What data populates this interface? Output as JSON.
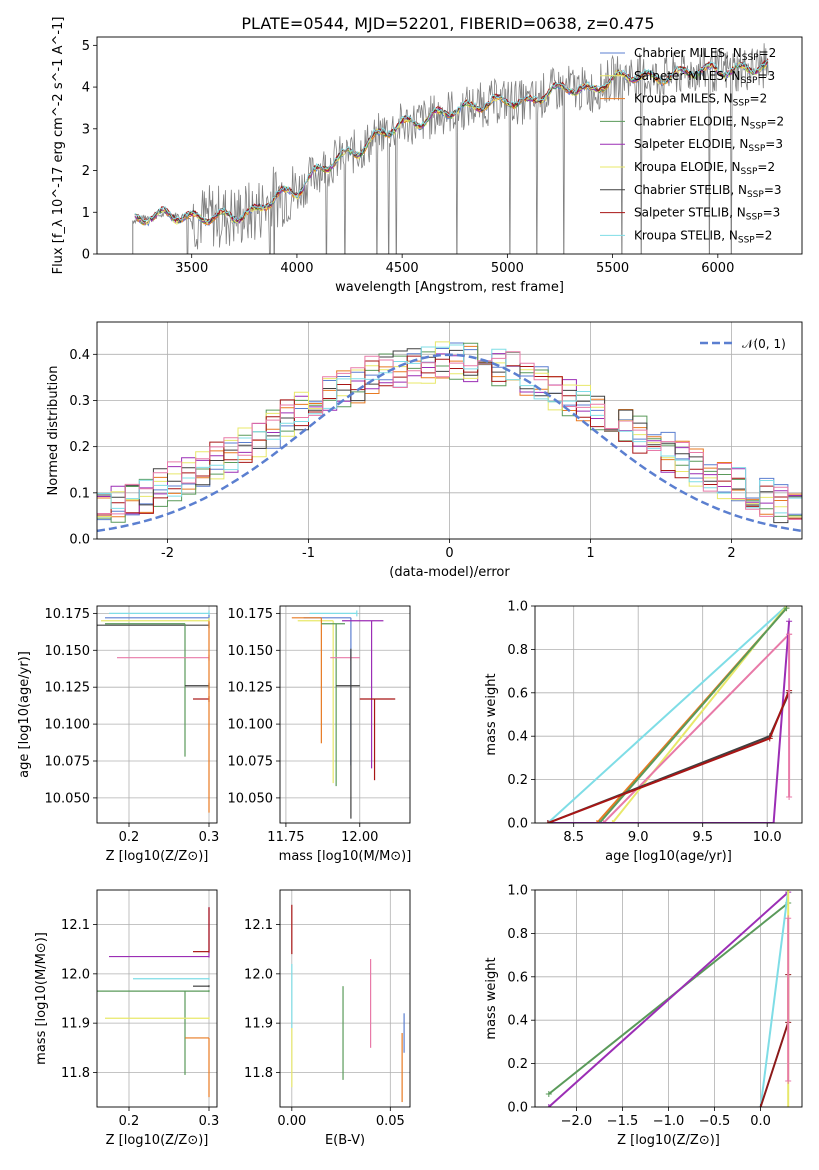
{
  "title": "PLATE=0544, MJD=52201, FIBERID=0638, z=0.475",
  "colors": {
    "blue": "#5b7fd0",
    "orange": "#e87a22",
    "green": "#5a9a5a",
    "purple": "#9b2eb5",
    "yellow": "#e8e86a",
    "darkgray": "#404040",
    "red": "#a81515",
    "cyan": "#7fdde6",
    "pink": "#e87aa8",
    "gray": "#808080",
    "darkred": "#8b1a1a",
    "sage": "#5a8a5a"
  },
  "chart_data": [
    {
      "id": "spectrum",
      "type": "line",
      "xlabel": "wavelength [Angstrom, rest frame]",
      "ylabel": "Flux [f_λ 10^-17 erg cm^-2 s^-1 A^-1]",
      "xlim": [
        3050,
        6400
      ],
      "ylim": [
        0,
        5.2
      ],
      "xticks": [
        3500,
        4000,
        4500,
        5000,
        5500,
        6000
      ],
      "yticks": [
        0,
        1,
        2,
        3,
        4,
        5
      ],
      "legend_position": "top-right",
      "series": [
        {
          "name": "Chabrier MILES, N_SSP=2",
          "color": "#5b7fd0"
        },
        {
          "name": "Salpeter MILES, N_SSP=3",
          "color": "#e8e86a"
        },
        {
          "name": "Kroupa MILES, N_SSP=2",
          "color": "#e87a22"
        },
        {
          "name": "Chabrier ELODIE, N_SSP=2",
          "color": "#5a9a5a"
        },
        {
          "name": "Salpeter ELODIE, N_SSP=3",
          "color": "#9b2eb5"
        },
        {
          "name": "Kroupa ELODIE, N_SSP=2",
          "color": "#e8e86a"
        },
        {
          "name": "Chabrier STELIB, N_SSP=3",
          "color": "#404040"
        },
        {
          "name": "Salpeter STELIB, N_SSP=3",
          "color": "#a81515"
        },
        {
          "name": "Kroupa STELIB, N_SSP=2",
          "color": "#7fdde6"
        }
      ],
      "continuum": {
        "x": [
          3200,
          3220,
          3300,
          3400,
          3500,
          3600,
          3700,
          3800,
          3900,
          4000,
          4100,
          4200,
          4300,
          4400,
          4500,
          4600,
          4700,
          4800,
          4900,
          5000,
          5100,
          5200,
          5300,
          5400,
          5500,
          5600,
          5700,
          5800,
          5900,
          6000,
          6100,
          6200
        ],
        "y": [
          0,
          0.8,
          0.9,
          0.95,
          0.85,
          0.9,
          0.9,
          1.0,
          1.4,
          1.5,
          2.0,
          2.3,
          2.5,
          2.9,
          3.1,
          3.2,
          3.4,
          3.5,
          3.6,
          3.7,
          3.6,
          3.9,
          4.0,
          3.9,
          4.2,
          4.3,
          4.2,
          4.3,
          4.4,
          4.4,
          4.4,
          4.5
        ]
      }
    },
    {
      "id": "residuals",
      "type": "step",
      "xlabel": "(data-model)/error",
      "ylabel": "Normed distribution",
      "xlim": [
        -2.5,
        2.5
      ],
      "ylim": [
        0,
        0.47
      ],
      "xticks": [
        -2,
        -1,
        0,
        1,
        2
      ],
      "yticks": [
        0.0,
        0.1,
        0.2,
        0.3,
        0.4
      ],
      "legend_position": "top-right",
      "legend": [
        "N(0,1)"
      ],
      "normal_curve": {
        "mean": 0,
        "sigma": 1,
        "color": "#5b7fd0"
      }
    },
    {
      "id": "age-vs-Z",
      "type": "errorbar",
      "xlabel": "Z [log10(Z/Z⊙)]",
      "ylabel": "age [log10(age/yr)]",
      "xlim": [
        0.16,
        0.31
      ],
      "ylim": [
        10.033,
        10.18
      ],
      "xticks": [
        0.2,
        0.3
      ],
      "yticks": [
        10.05,
        10.075,
        10.1,
        10.125,
        10.15,
        10.175
      ],
      "points": [
        {
          "x": 0.3,
          "y": 10.175,
          "xerr": [
            0.125,
            0
          ],
          "yerr": [
            0.002,
            0.002
          ],
          "color": "#7fdde6"
        },
        {
          "x": 0.3,
          "y": 10.172,
          "xerr": [
            0.13,
            0
          ],
          "yerr": [
            0.002,
            0.002
          ],
          "color": "#5b7fd0"
        },
        {
          "x": 0.3,
          "y": 10.17,
          "xerr": [
            0.135,
            0
          ],
          "yerr": [
            0.002,
            0.002
          ],
          "color": "#e8e86a"
        },
        {
          "x": 0.3,
          "y": 10.167,
          "xerr": [
            0.14,
            0
          ],
          "yerr": [
            0.002,
            0.002
          ],
          "color": "#404040"
        },
        {
          "x": 0.27,
          "y": 10.168,
          "xerr": [
            0.1,
            0
          ],
          "yerr": [
            0.09,
            0
          ],
          "color": "#5a9a5a"
        },
        {
          "x": 0.3,
          "y": 10.145,
          "xerr": [
            0.115,
            0
          ],
          "yerr": [
            0.002,
            0.002
          ],
          "color": "#e87aa8"
        },
        {
          "x": 0.3,
          "y": 10.126,
          "xerr": [
            0.03,
            0
          ],
          "yerr": [
            0.002,
            0.002
          ],
          "color": "#404040"
        },
        {
          "x": 0.3,
          "y": 10.117,
          "xerr": [
            0.02,
            0
          ],
          "yerr": [
            0.002,
            0.002
          ],
          "color": "#a81515"
        },
        {
          "x": 0.3,
          "y": 10.1,
          "xerr": [
            0,
            0
          ],
          "yerr": [
            0.06,
            0.07
          ],
          "color": "#e87a22"
        }
      ]
    },
    {
      "id": "age-vs-mass",
      "type": "errorbar",
      "xlabel": "mass [log10(M/M⊙)]",
      "xlim": [
        11.73,
        12.17
      ],
      "ylim": [
        10.033,
        10.18
      ],
      "xticks": [
        11.75,
        12.0
      ],
      "yticks": [
        10.05,
        10.075,
        10.1,
        10.125,
        10.15,
        10.175
      ],
      "points": [
        {
          "x": 11.99,
          "y": 10.175,
          "xerr": [
            0.16,
            0.0
          ],
          "yerr": [
            0.002,
            0.002
          ],
          "color": "#7fdde6"
        },
        {
          "x": 11.97,
          "y": 10.172,
          "xerr": [
            0.16,
            0.0
          ],
          "yerr": [
            0.1,
            0.0
          ],
          "color": "#5b7fd0"
        },
        {
          "x": 11.91,
          "y": 10.17,
          "xerr": [
            0.12,
            0.0
          ],
          "yerr": [
            0.11,
            0.0
          ],
          "color": "#e8e86a"
        },
        {
          "x": 12.04,
          "y": 10.17,
          "xerr": [
            0.1,
            0.04
          ],
          "yerr": [
            0.1,
            0.0
          ],
          "color": "#9b2eb5"
        },
        {
          "x": 11.87,
          "y": 10.172,
          "xerr": [
            0.1,
            0.0
          ],
          "yerr": [
            0.085,
            0.0
          ],
          "color": "#e87a22"
        },
        {
          "x": 11.92,
          "y": 10.168,
          "xerr": [
            0.05,
            0.03
          ],
          "yerr": [
            0.11,
            0.0
          ],
          "color": "#5a9a5a"
        },
        {
          "x": 11.97,
          "y": 10.145,
          "xerr": [
            0.07,
            0.03
          ],
          "yerr": [
            0.002,
            0.002
          ],
          "color": "#e87aa8"
        },
        {
          "x": 11.97,
          "y": 10.126,
          "xerr": [
            0.05,
            0.03
          ],
          "yerr": [
            0.09,
            0.025
          ],
          "color": "#404040"
        },
        {
          "x": 12.05,
          "y": 10.117,
          "xerr": [
            0.05,
            0.07
          ],
          "yerr": [
            0.055,
            0.0
          ],
          "color": "#a81515"
        }
      ]
    },
    {
      "id": "weight-vs-age",
      "type": "line",
      "xlabel": "age [log10(age/yr)]",
      "ylabel": "mass weight",
      "xlim": [
        8.2,
        10.27
      ],
      "ylim": [
        0.0,
        1.0
      ],
      "xticks": [
        8.5,
        9.0,
        9.5,
        10.0
      ],
      "yticks": [
        0.0,
        0.2,
        0.4,
        0.6,
        0.8,
        1.0
      ],
      "series": [
        {
          "color": "#7fdde6",
          "x": [
            8.3,
            10.15
          ],
          "y": [
            0.0,
            1.0
          ]
        },
        {
          "color": "#e87a22",
          "x": [
            8.68,
            10.15
          ],
          "y": [
            0.0,
            0.99
          ]
        },
        {
          "color": "#e8e86a",
          "x": [
            8.8,
            10.15
          ],
          "y": [
            0.0,
            1.0
          ]
        },
        {
          "color": "#e87aa8",
          "x": [
            8.73,
            10.17
          ],
          "y": [
            0.0,
            0.87
          ]
        },
        {
          "color": "#5a9a5a",
          "x": [
            8.7,
            10.15
          ],
          "y": [
            0.0,
            0.99
          ]
        },
        {
          "color": "#9b2eb5",
          "x": [
            8.3,
            10.05,
            10.17
          ],
          "y": [
            0.0,
            0.0,
            0.93
          ]
        },
        {
          "color": "#404040",
          "x": [
            8.3,
            10.02,
            10.17
          ],
          "y": [
            0.0,
            0.4,
            0.6
          ]
        },
        {
          "color": "#a81515",
          "x": [
            8.3,
            10.02,
            10.17
          ],
          "y": [
            0.0,
            0.39,
            0.61
          ]
        },
        {
          "color": "#e87aa8",
          "x": [
            10.17,
            10.17
          ],
          "y": [
            0.87,
            0.12
          ]
        }
      ]
    },
    {
      "id": "mass-vs-Z",
      "type": "errorbar",
      "xlabel": "Z [log10(Z/Z⊙)]",
      "ylabel": "mass [log10(M/M⊙)]",
      "xlim": [
        0.16,
        0.31
      ],
      "ylim": [
        11.73,
        12.17
      ],
      "xticks": [
        0.2,
        0.3
      ],
      "yticks": [
        11.8,
        11.9,
        12.0,
        12.1
      ],
      "points": [
        {
          "x": 0.3,
          "y": 12.035,
          "xerr": [
            0.125,
            0
          ],
          "yerr": [
            0.002,
            0.1
          ],
          "color": "#9b2eb5"
        },
        {
          "x": 0.3,
          "y": 12.045,
          "xerr": [
            0.02,
            0
          ],
          "yerr": [
            0.002,
            0.09
          ],
          "color": "#a81515"
        },
        {
          "x": 0.3,
          "y": 11.99,
          "xerr": [
            0.095,
            0
          ],
          "yerr": [
            0.002,
            0.002
          ],
          "color": "#7fdde6"
        },
        {
          "x": 0.3,
          "y": 11.975,
          "xerr": [
            0.02,
            0
          ],
          "yerr": [
            0.002,
            0.002
          ],
          "color": "#404040"
        },
        {
          "x": 0.3,
          "y": 11.965,
          "xerr": [
            0.14,
            0
          ],
          "yerr": [
            0.002,
            0.002
          ],
          "color": "#5a9a5a"
        },
        {
          "x": 0.27,
          "y": 11.965,
          "xerr": [
            0,
            0
          ],
          "yerr": [
            0.17,
            0
          ],
          "color": "#5a9a5a"
        },
        {
          "x": 0.3,
          "y": 11.91,
          "xerr": [
            0.13,
            0
          ],
          "yerr": [
            0.002,
            0.002
          ],
          "color": "#e8e86a"
        },
        {
          "x": 0.3,
          "y": 11.87,
          "xerr": [
            0.03,
            0
          ],
          "yerr": [
            0.12,
            0.0
          ],
          "color": "#e87a22"
        }
      ]
    },
    {
      "id": "mass-vs-EBV",
      "type": "errorbar",
      "xlabel": "E(B-V)",
      "xlim": [
        -0.006,
        0.06
      ],
      "ylim": [
        11.73,
        12.17
      ],
      "xticks": [
        0.0,
        0.05
      ],
      "yticks": [
        11.8,
        11.9,
        12.0,
        12.1
      ],
      "points": [
        {
          "x": 0.0,
          "y": 12.1,
          "yerr": [
            0.06,
            0.04
          ],
          "color": "#a81515"
        },
        {
          "x": 0.0,
          "y": 11.96,
          "yerr": [
            0.07,
            0.06
          ],
          "color": "#7fdde6"
        },
        {
          "x": 0.0,
          "y": 11.83,
          "yerr": [
            0.06,
            0.06
          ],
          "color": "#e8e86a"
        },
        {
          "x": 0.026,
          "y": 11.88,
          "yerr": [
            0.095,
            0.095
          ],
          "color": "#5a9a5a"
        },
        {
          "x": 0.04,
          "y": 11.94,
          "yerr": [
            0.09,
            0.09
          ],
          "color": "#e87aa8"
        },
        {
          "x": 0.056,
          "y": 11.81,
          "yerr": [
            0.07,
            0.07
          ],
          "color": "#e87a22"
        },
        {
          "x": 0.057,
          "y": 11.88,
          "yerr": [
            0.04,
            0.04
          ],
          "color": "#5b7fd0"
        }
      ]
    },
    {
      "id": "weight-vs-Z",
      "type": "line",
      "xlabel": "Z [log10(Z/Z⊙)]",
      "ylabel": "mass weight",
      "xlim": [
        -2.45,
        0.45
      ],
      "ylim": [
        0.0,
        1.0
      ],
      "xticks": [
        -2.0,
        -1.5,
        -1.0,
        -0.5,
        0.0
      ],
      "yticks": [
        0.0,
        0.2,
        0.4,
        0.6,
        0.8,
        1.0
      ],
      "series": [
        {
          "color": "#5a9a5a",
          "x": [
            -2.3,
            0.3
          ],
          "y": [
            0.06,
            0.94
          ]
        },
        {
          "color": "#9b2eb5",
          "x": [
            -2.3,
            0.3
          ],
          "y": [
            0.0,
            0.99
          ]
        },
        {
          "color": "#7fdde6",
          "x": [
            0.0,
            0.3
          ],
          "y": [
            0.0,
            1.0
          ]
        },
        {
          "color": "#8b1a1a",
          "x": [
            0.0,
            0.3,
            0.3
          ],
          "y": [
            0.0,
            0.39,
            0.61
          ]
        },
        {
          "color": "#e8e86a",
          "x": [
            0.3,
            0.3
          ],
          "y": [
            0.0,
            1.0
          ]
        },
        {
          "color": "#e87aa8",
          "x": [
            0.3,
            0.3
          ],
          "y": [
            0.12,
            0.87
          ]
        }
      ]
    }
  ]
}
